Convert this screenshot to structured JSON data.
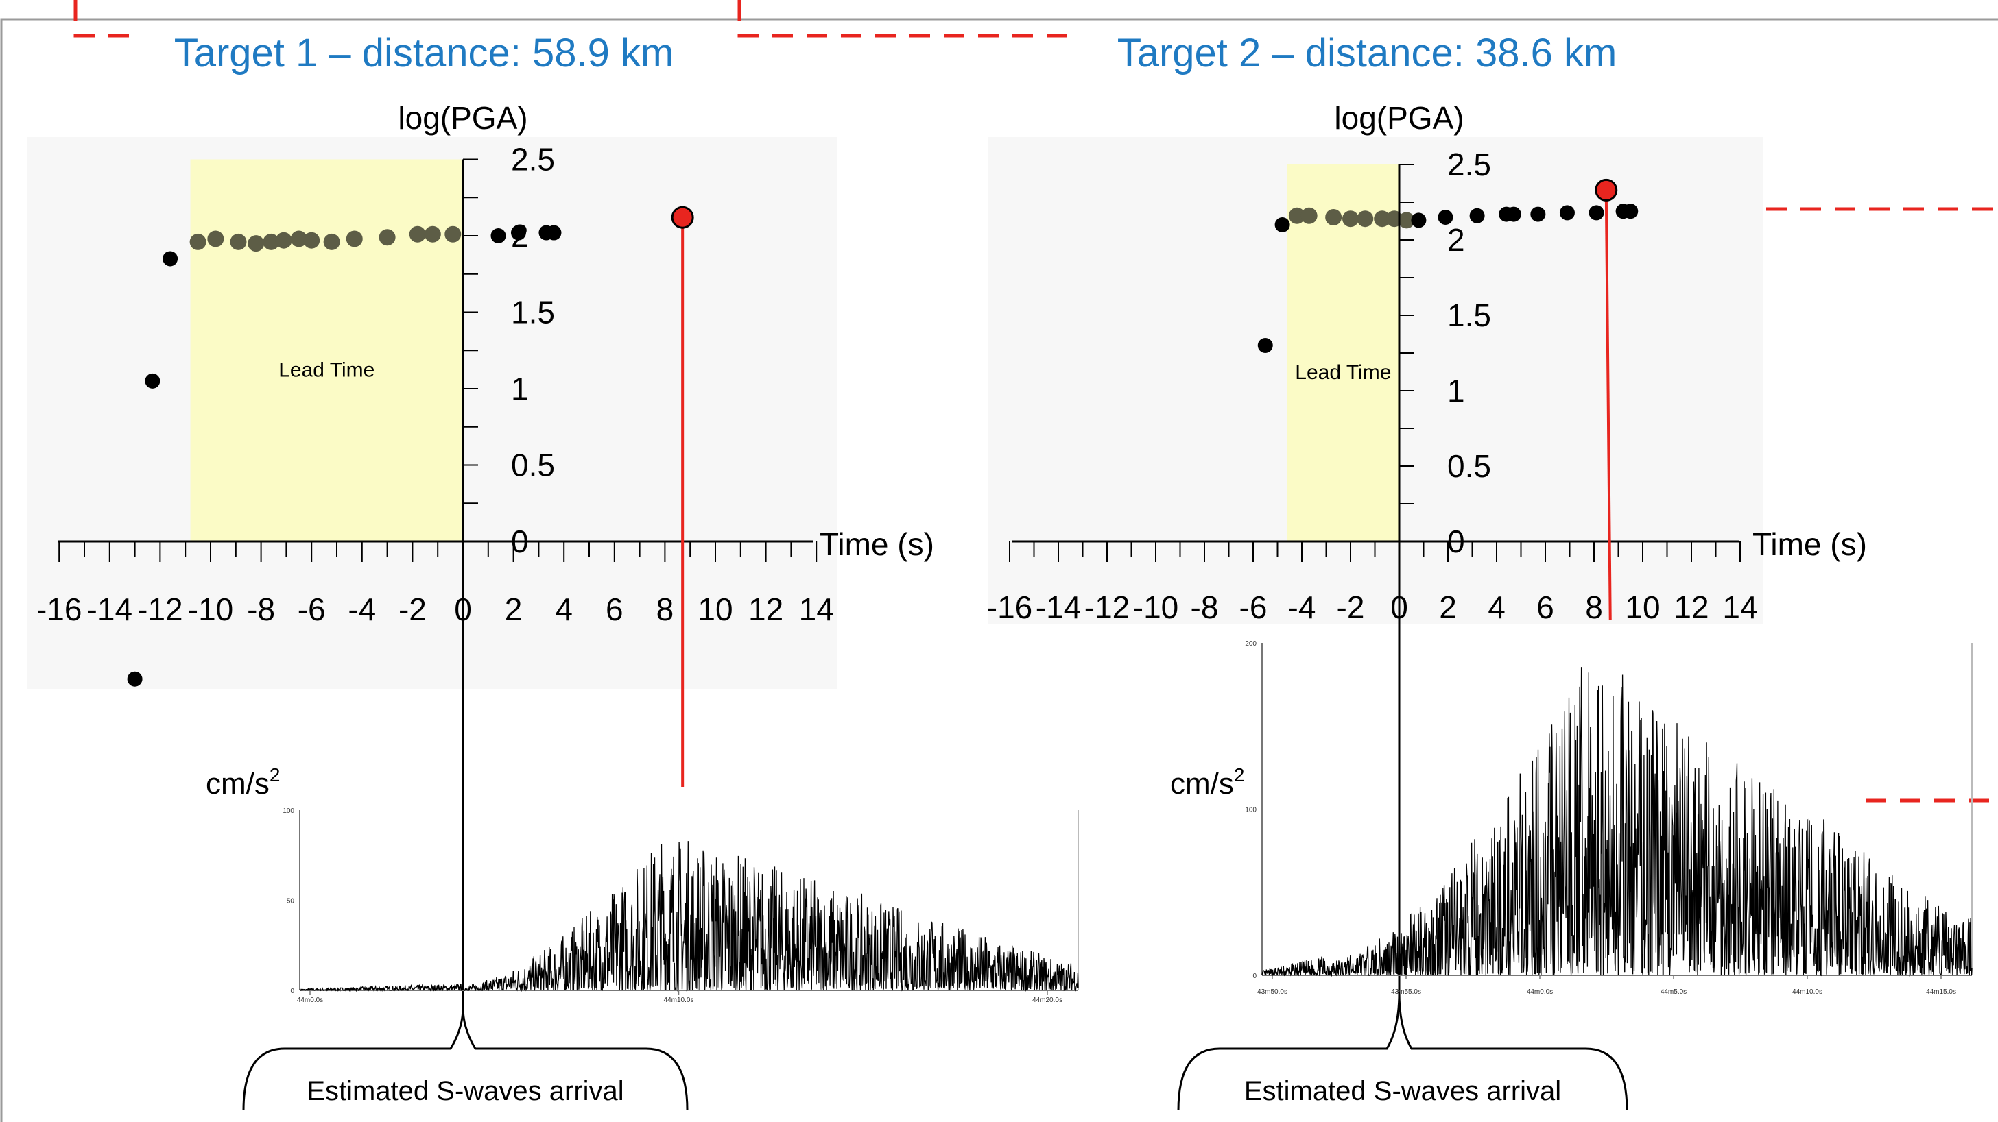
{
  "colors": {
    "title": "#1f7ac2",
    "lead_fill": "#fbfbc6",
    "dot_black": "#000000",
    "dot_olive": "#5d5d46",
    "red": "#e8251f",
    "dashed_red": "#e8251f",
    "frame": "#9a9a9a",
    "plot_bg": "#f7f7f7"
  },
  "chart_data": [
    {
      "type": "scatter",
      "title": "Target 1 – distance: 58.9 km",
      "ylabel": "log(PGA)",
      "xlabel": "Time (s)",
      "xlim": [
        -16,
        14
      ],
      "ylim": [
        0,
        2.5
      ],
      "x_ticks": [
        "-16",
        "-14",
        "-12",
        "-10",
        "-8",
        "-6",
        "-4",
        "-2",
        "0",
        "2",
        "4",
        "6",
        "8",
        "10",
        "12",
        "14"
      ],
      "y_ticks": [
        "2.5",
        "2",
        "1.5",
        "1",
        "0.5",
        "0"
      ],
      "lead_time": {
        "label": "Lead Time",
        "x_from": -10.8,
        "x_to": 0
      },
      "points_black": [
        [
          -13.0,
          -0.9
        ],
        [
          -12.3,
          1.05
        ],
        [
          -11.6,
          1.85
        ],
        [
          1.4,
          2.0
        ],
        [
          2.2,
          2.02
        ],
        [
          3.3,
          2.02
        ],
        [
          3.6,
          2.02
        ]
      ],
      "points_olive": [
        [
          -10.5,
          1.96
        ],
        [
          -9.8,
          1.98
        ],
        [
          -8.9,
          1.96
        ],
        [
          -8.2,
          1.95
        ],
        [
          -7.6,
          1.96
        ],
        [
          -7.1,
          1.97
        ],
        [
          -6.5,
          1.98
        ],
        [
          -6.0,
          1.97
        ],
        [
          -5.2,
          1.96
        ],
        [
          -4.3,
          1.98
        ],
        [
          -3.0,
          1.99
        ],
        [
          -1.8,
          2.01
        ],
        [
          -1.2,
          2.01
        ],
        [
          -0.4,
          2.01
        ]
      ],
      "highlight_point": {
        "x": 8.7,
        "y": 2.12
      },
      "waveform": {
        "unit": "cm/s",
        "y_ticks": [
          "100",
          "50",
          "0"
        ],
        "time_ticks": [
          "44m0.0s",
          "44m10.0s",
          "44m20.0s"
        ],
        "onset": 0.21,
        "peak": 0.47,
        "decay": 1.0,
        "base_level": 0.03,
        "amp": 0.9,
        "seed": 7
      },
      "bracket_label": "Estimated S-waves arrival"
    },
    {
      "type": "scatter",
      "title": "Target 2 – distance: 38.6 km",
      "ylabel": "log(PGA)",
      "xlabel": "Time (s)",
      "xlim": [
        -16,
        14
      ],
      "ylim": [
        0,
        2.5
      ],
      "x_ticks": [
        "-16",
        "-14",
        "-12",
        "-10",
        "-8",
        "-6",
        "-4",
        "-2",
        "0",
        "2",
        "4",
        "6",
        "8",
        "10",
        "12",
        "14"
      ],
      "y_ticks": [
        "2.5",
        "2",
        "1.5",
        "1",
        "0.5",
        "0"
      ],
      "lead_time": {
        "label": "Lead Time",
        "x_from": -4.6,
        "x_to": 0
      },
      "points_black": [
        [
          -5.5,
          1.3
        ],
        [
          -4.8,
          2.1
        ],
        [
          0.8,
          2.13
        ],
        [
          1.9,
          2.15
        ],
        [
          3.2,
          2.16
        ],
        [
          4.4,
          2.17
        ],
        [
          4.7,
          2.17
        ],
        [
          5.7,
          2.17
        ],
        [
          6.9,
          2.18
        ],
        [
          8.1,
          2.18
        ],
        [
          9.2,
          2.19
        ],
        [
          9.5,
          2.19
        ]
      ],
      "points_olive": [
        [
          -4.2,
          2.16
        ],
        [
          -3.7,
          2.16
        ],
        [
          -2.7,
          2.15
        ],
        [
          -2.0,
          2.14
        ],
        [
          -1.4,
          2.14
        ],
        [
          -0.7,
          2.14
        ],
        [
          -0.2,
          2.14
        ],
        [
          0.3,
          2.13
        ]
      ],
      "highlight_point": {
        "x": 8.5,
        "y": 2.33
      },
      "waveform": {
        "unit": "cm/s",
        "y_ticks": [
          "200",
          "100",
          "0"
        ],
        "time_ticks": [
          "43m50.0s",
          "43m55.0s",
          "44m0.0s",
          "44m5.0s",
          "44m10.0s",
          "44m15.0s"
        ],
        "onset": 0.1,
        "peak": 0.46,
        "decay": 1.0,
        "base_level": 0.05,
        "amp": 0.98,
        "seed": 13
      },
      "bracket_label": "Estimated S-waves arrival"
    }
  ]
}
